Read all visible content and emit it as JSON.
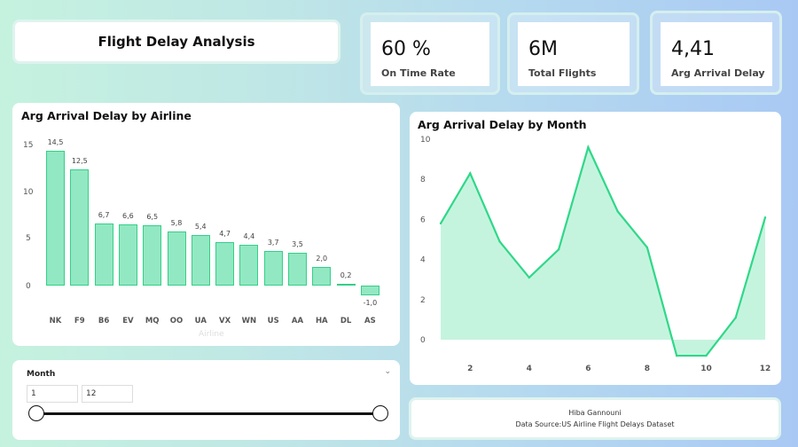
{
  "header": {
    "title": "Flight Delay Analysis"
  },
  "kpis": [
    {
      "value": "60 %",
      "label": "On Time Rate"
    },
    {
      "value": "6M",
      "label": "Total Flights"
    },
    {
      "value": "4,41",
      "label": "Arg Arrival Delay"
    }
  ],
  "airline_chart": {
    "title": "Arg Arrival Delay by Airline",
    "xlabel": "Airline",
    "yticks": [
      "15",
      "10",
      "5",
      "0"
    ]
  },
  "month_chart": {
    "title": "Arg Arrival Delay by Month",
    "yticks": [
      "10",
      "8",
      "6",
      "4",
      "2",
      "0"
    ],
    "xticks": [
      "2",
      "4",
      "6",
      "8",
      "10",
      "12"
    ]
  },
  "slicer": {
    "title": "Month",
    "from": "1",
    "to": "12"
  },
  "footer": {
    "author": "Hiba Gannouni",
    "source": "Data Source:US Airline Flight Delays Dataset"
  },
  "colors": {
    "bar_fill": "#92e8c2",
    "bar_stroke": "#35cf89",
    "line": "#2fd889",
    "area": "#c5f4de"
  },
  "icons": {
    "dropdown": "chevron-down-icon"
  },
  "chart_data": [
    {
      "type": "bar",
      "title": "Arg Arrival Delay by Airline",
      "xlabel": "Airline",
      "ylabel": "",
      "categories": [
        "NK",
        "F9",
        "B6",
        "EV",
        "MQ",
        "OO",
        "UA",
        "VX",
        "WN",
        "US",
        "AA",
        "HA",
        "DL",
        "AS"
      ],
      "values": [
        14.5,
        12.5,
        6.7,
        6.6,
        6.5,
        5.8,
        5.4,
        4.7,
        4.4,
        3.7,
        3.5,
        2.0,
        0.2,
        -1.0
      ],
      "labels": [
        "14,5",
        "12,5",
        "6,7",
        "6,6",
        "6,5",
        "5,8",
        "5,4",
        "4,7",
        "4,4",
        "3,7",
        "3,5",
        "2,0",
        "0,2",
        "-1,0"
      ],
      "ylim": [
        -1.5,
        16
      ],
      "grid": false
    },
    {
      "type": "area",
      "title": "Arg Arrival Delay by Month",
      "x": [
        1,
        2,
        3,
        4,
        5,
        6,
        7,
        8,
        9,
        10,
        11,
        12
      ],
      "values": [
        5.8,
        8.3,
        4.9,
        3.1,
        4.5,
        9.6,
        6.4,
        4.6,
        -0.8,
        -0.8,
        1.1,
        6.1
      ],
      "xlim": [
        1,
        12
      ],
      "ylim": [
        -1,
        10
      ],
      "grid": false
    }
  ]
}
